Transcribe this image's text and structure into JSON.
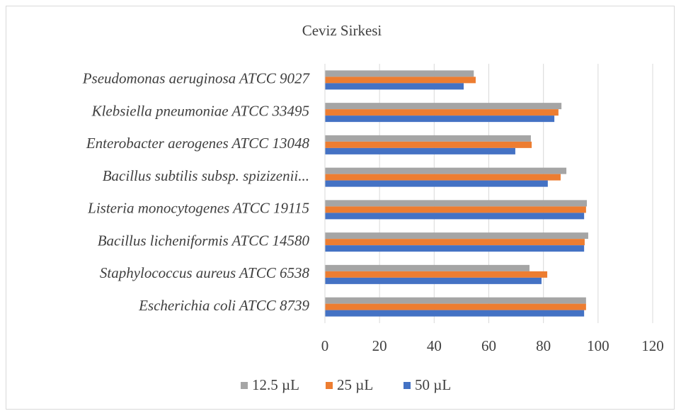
{
  "chart_data": {
    "type": "hbar",
    "title": "Ceviz Sirkesi",
    "categories": [
      "Pseudomonas aeruginosa ATCC 9027",
      "Klebsiella pneumoniae ATCC 33495",
      "Enterobacter aerogenes ATCC 13048",
      "Bacillus subtilis subsp. spizizenii...",
      "Listeria monocytogenes ATCC 19115",
      "Bacillus licheniformis ATCC 14580",
      "Staphylococcus aureus ATCC 6538",
      "Escherichia coli ATCC 8739"
    ],
    "series": [
      {
        "name": "12.5 µL",
        "color": "#a5a5a5",
        "values": [
          54.5,
          86.6,
          75.4,
          88.4,
          95.9,
          96.4,
          74.9,
          95.6
        ]
      },
      {
        "name": "25 µL",
        "color": "#ed7d31",
        "values": [
          55.2,
          85.5,
          75.7,
          86.3,
          95.6,
          95.1,
          81.4,
          95.6
        ]
      },
      {
        "name": "50 µL",
        "color": "#4472c4",
        "values": [
          50.8,
          84,
          69.7,
          81.6,
          94.9,
          94.9,
          79.3,
          94.9
        ]
      }
    ],
    "xlim": [
      0,
      120
    ],
    "xticks": [
      0,
      20,
      40,
      60,
      80,
      100,
      120
    ],
    "grid": true,
    "legend": "bottom"
  }
}
